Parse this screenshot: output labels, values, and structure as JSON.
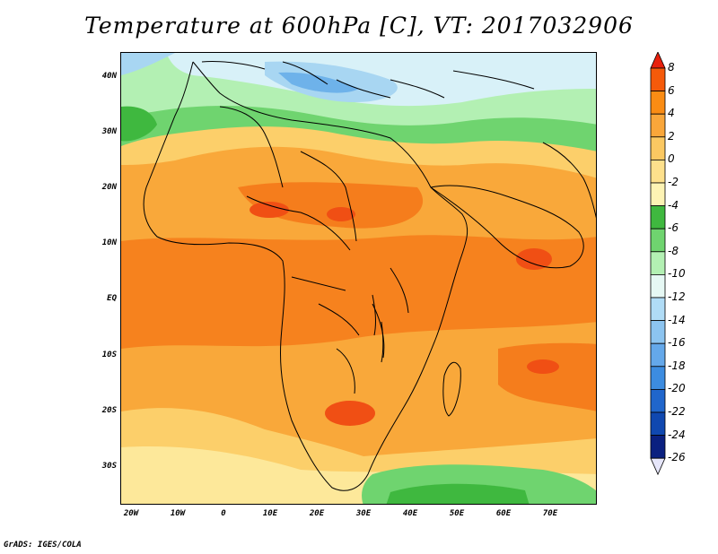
{
  "title": "Temperature at 600hPa [C], VT: 2017032906",
  "credit": "GrADS: IGES/COLA",
  "y_axis_labels": [
    "40N",
    "30N",
    "20N",
    "10N",
    "EQ",
    "10S",
    "20S",
    "30S"
  ],
  "x_axis_labels": [
    "20W",
    "10W",
    "0",
    "10E",
    "20E",
    "30E",
    "40E",
    "50E",
    "60E",
    "70E"
  ],
  "colorbar": {
    "labels": [
      "8",
      "6",
      "4",
      "2",
      "0",
      "-2",
      "-4",
      "-6",
      "-8",
      "-10",
      "-12",
      "-14",
      "-16",
      "-18",
      "-20",
      "-22",
      "-24",
      "-26"
    ],
    "colors": [
      "#e8200c",
      "#f55a0a",
      "#fa8c14",
      "#f9a63a",
      "#fbc862",
      "#fde08c",
      "#fdf3b4",
      "#3fb83f",
      "#6fd46f",
      "#b3f0b3",
      "#e6f8f4",
      "#b0dcf6",
      "#8cc4f0",
      "#64a8ea",
      "#3c8ce0",
      "#2066cc",
      "#1048b0",
      "#0a2080",
      "#e6e6fa"
    ]
  },
  "map_colors": {
    "warm_dark": "#f57d1c",
    "warm_mid": "#f9a83a",
    "warm_light": "#fccf6a",
    "pale": "#fde89a",
    "green_dark": "#3fb83f",
    "green_mid": "#6fd46f",
    "green_light": "#b3f0b3",
    "blue_pale": "#d8f1f8",
    "blue_light": "#a8d6f2",
    "blue_mid": "#6eb2ea",
    "red": "#f04f14",
    "border": "#000000"
  }
}
